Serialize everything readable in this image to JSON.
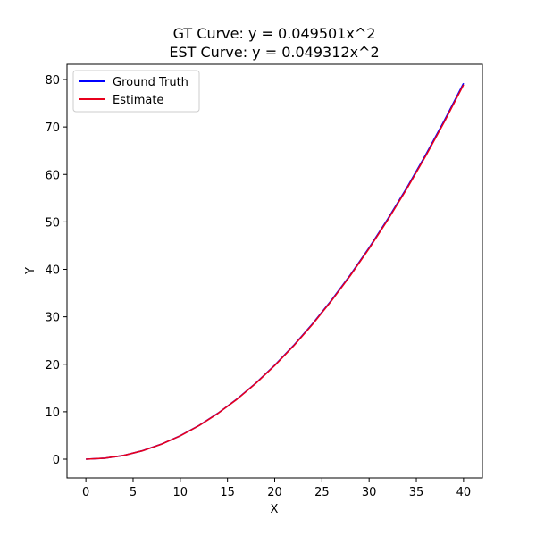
{
  "chart_data": {
    "type": "line",
    "title_lines": [
      "GT Curve: y = 0.049501x^2",
      "EST Curve: y = 0.049312x^2"
    ],
    "xlabel": "X",
    "ylabel": "Y",
    "xlim": [
      -2,
      42
    ],
    "ylim": [
      -3.95,
      83.2
    ],
    "xticks": [
      0,
      5,
      10,
      15,
      20,
      25,
      30,
      35,
      40
    ],
    "yticks": [
      0,
      10,
      20,
      30,
      40,
      50,
      60,
      70,
      80
    ],
    "grid": false,
    "legend_position": "top-left",
    "x": [
      0,
      2,
      4,
      6,
      8,
      10,
      12,
      14,
      16,
      18,
      20,
      22,
      24,
      26,
      28,
      30,
      32,
      34,
      36,
      38,
      40
    ],
    "series": [
      {
        "name": "Ground Truth",
        "color": "#0000ff",
        "values": [
          0,
          0.198,
          0.792,
          1.782,
          3.168,
          4.95,
          7.128,
          9.702,
          12.672,
          16.038,
          19.8,
          23.958,
          28.513,
          33.463,
          38.809,
          44.551,
          50.689,
          57.223,
          64.153,
          71.479,
          79.202
        ]
      },
      {
        "name": "Estimate",
        "color": "#e8001c",
        "values": [
          0,
          0.197,
          0.789,
          1.775,
          3.156,
          4.931,
          7.101,
          9.665,
          12.624,
          15.977,
          19.725,
          23.867,
          28.404,
          33.335,
          38.661,
          44.381,
          50.495,
          57.005,
          63.908,
          71.207,
          78.899
        ]
      }
    ]
  }
}
